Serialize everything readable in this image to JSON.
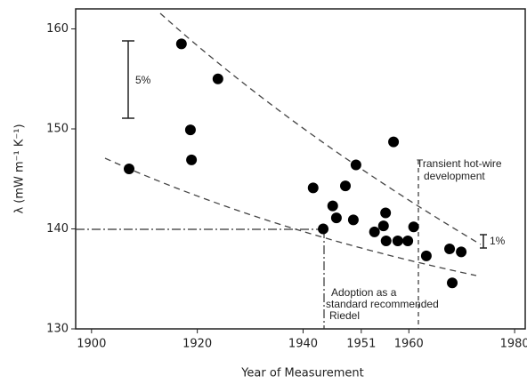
{
  "chart_data": {
    "type": "scatter",
    "x_label": "Year of Measurement",
    "y_label": "λ (mW m⁻¹ K⁻¹)",
    "xlim": [
      1897,
      1982
    ],
    "xticks": [
      1900,
      1920,
      1940,
      1951,
      1960,
      1980
    ],
    "ylim": [
      130,
      162
    ],
    "yticks": [
      130,
      140,
      150,
      160
    ],
    "color": "#000000",
    "series": [
      {
        "x": [
          1907.1,
          1917.0,
          1918.7,
          1918.9,
          1923.9,
          1941.9,
          1945.6,
          1946.3,
          1943.8,
          1948.0,
          1949.5,
          1950.0,
          1953.5,
          1955.2,
          1955.6,
          1955.7,
          1957.1,
          1957.9,
          1959.8,
          1960.9,
          1963.3,
          1967.7,
          1968.2,
          1969.9
        ],
        "values": [
          146,
          158.5,
          149.9,
          146.9,
          155.0,
          144.1,
          142.3,
          141.1,
          140.0,
          144.3,
          140.9,
          146.4,
          139.7,
          140.3,
          141.6,
          138.8,
          148.7,
          138.8,
          138.8,
          140.2,
          137.3,
          138.0,
          134.6,
          137.7
        ]
      }
    ],
    "annotations": {
      "scale_5": "5%",
      "scale_1": "1%",
      "hot_wire": [
        "Transient hot-wire",
        "development"
      ],
      "adoption": [
        "Adoption as a",
        "standard recommended",
        "Riedel"
      ]
    }
  }
}
